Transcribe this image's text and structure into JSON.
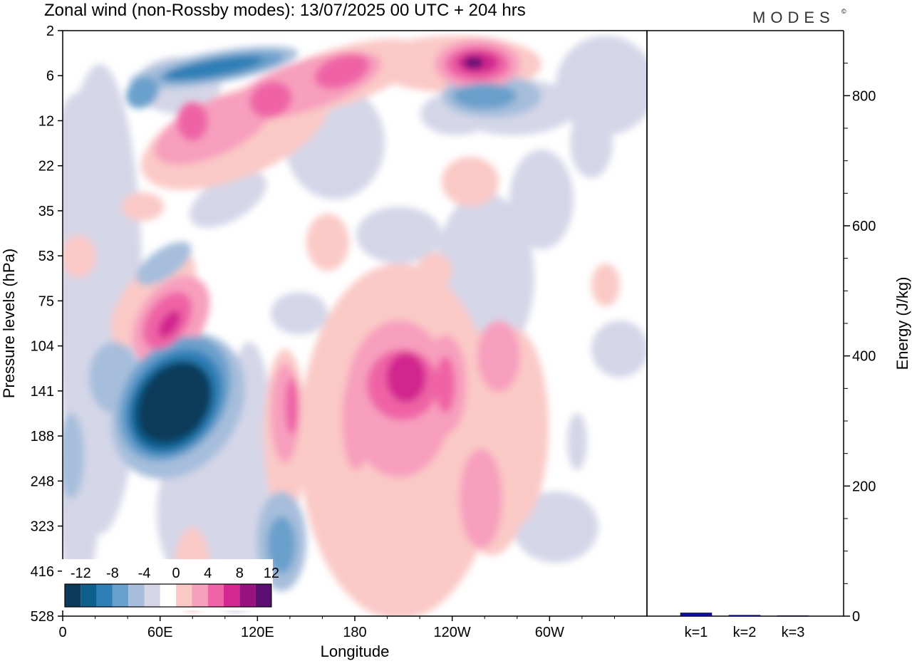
{
  "title": "Zonal wind (non-Rossby modes):  13/07/2025  00 UTC  + 204 hrs",
  "logo": "MODES",
  "logo_mark": "©",
  "colors": {
    "levels": [
      "#0c3a5a",
      "#0e5f8c",
      "#2e7fb6",
      "#6aa0cc",
      "#a6bedb",
      "#d4d6e8",
      "#ffffff",
      "#fac9c6",
      "#f79fbd",
      "#ef64a6",
      "#d2288f",
      "#9a1280",
      "#5b0f73"
    ]
  },
  "chart_data": [
    {
      "type": "heatmap",
      "title": "Zonal wind (non-Rossby modes):  13/07/2025  00 UTC  + 204 hrs",
      "xlabel": "Longitude",
      "ylabel": "Pressure levels (hPa)",
      "x_ticks": [
        "0",
        "60E",
        "120E",
        "180",
        "120W",
        "60W"
      ],
      "x_tick_values": [
        0,
        60,
        120,
        180,
        240,
        300
      ],
      "xlim": [
        0,
        360
      ],
      "y_ticks": [
        "2",
        "6",
        "12",
        "22",
        "35",
        "53",
        "75",
        "104",
        "141",
        "188",
        "248",
        "323",
        "416",
        "528"
      ],
      "y_scale": "model levels",
      "colorbar": {
        "labels": [
          "-12",
          "-8",
          "-4",
          "0",
          "4",
          "8",
          "12"
        ],
        "levels": [
          -14,
          -12,
          -10,
          -8,
          -6,
          -4,
          -2,
          0,
          2,
          4,
          6,
          8,
          10,
          12,
          14
        ],
        "placement": "bottom-left"
      },
      "features": [
        {
          "lon": 60,
          "level": "141",
          "value": -14
        },
        {
          "lon": 65,
          "level": "104",
          "value": 10
        },
        {
          "lon": 205,
          "level": "141",
          "value": 10
        },
        {
          "lon": 250,
          "level": "6",
          "value": 14
        },
        {
          "lon": 100,
          "level": "6",
          "value": -8
        },
        {
          "lon": 125,
          "level": "416",
          "value": -8
        }
      ]
    },
    {
      "type": "bar",
      "categories": [
        "k=1",
        "k=2",
        "k=3"
      ],
      "values": [
        5,
        1.5,
        0.8
      ],
      "ylabel": "Energy (J/kg)",
      "ylim": [
        0,
        900
      ],
      "y_ticks": [
        "0",
        "200",
        "400",
        "600",
        "800"
      ],
      "y_tick_values": [
        0,
        200,
        400,
        600,
        800
      ],
      "bar_color": "#1010a0"
    }
  ]
}
